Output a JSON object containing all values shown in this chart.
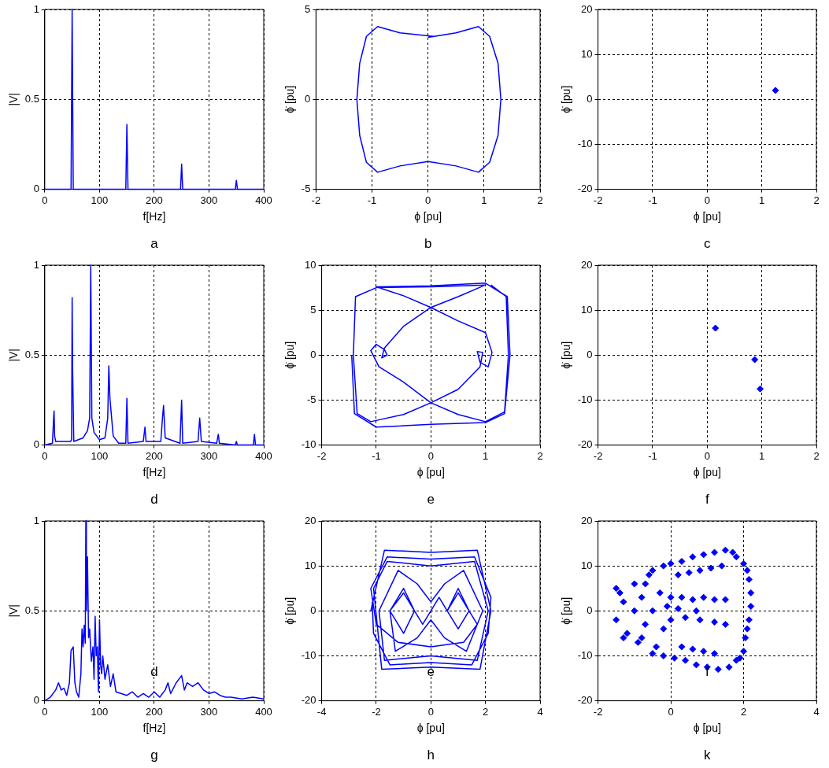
{
  "chart_data": [
    {
      "type": "line",
      "xlabel": "f[Hz]",
      "ylabel": "|V|",
      "color": "#0000ff",
      "grid": true,
      "xlim": [
        0,
        400
      ],
      "ylim": [
        0,
        1
      ],
      "xticks": [
        0,
        100,
        200,
        300,
        400
      ],
      "yticks": [
        0,
        0.5,
        1
      ],
      "annotations": [
        "a"
      ],
      "x": [
        0,
        48,
        50,
        52,
        148,
        150,
        152,
        248,
        250,
        252,
        348,
        350,
        352,
        400
      ],
      "values": [
        0,
        0,
        1,
        0,
        0,
        0.36,
        0,
        0,
        0.14,
        0,
        0,
        0.05,
        0,
        0
      ]
    },
    {
      "type": "line",
      "xlabel": "ϕ [pu]",
      "ylabel": "ϕ̇ [pu]",
      "color": "#0000ff",
      "grid": true,
      "xlim": [
        -2,
        2
      ],
      "ylim": [
        -5,
        5
      ],
      "xticks": [
        -2,
        -1,
        0,
        1,
        2
      ],
      "yticks": [
        -5,
        0,
        5
      ],
      "annotations": [
        "b"
      ],
      "x": [
        0,
        0.5,
        0.9,
        1.1,
        1.25,
        1.3,
        1.25,
        1.1,
        0.9,
        0.5,
        0,
        -0.5,
        -0.9,
        -1.1,
        -1.22,
        -1.27,
        -1.22,
        -1.1,
        -0.9,
        -0.5,
        0.1
      ],
      "values": [
        3.45,
        3.7,
        4.05,
        3.5,
        2,
        0,
        -2,
        -3.5,
        -4.05,
        -3.7,
        -3.45,
        -3.7,
        -4.05,
        -3.5,
        -2,
        0,
        2,
        3.5,
        4.05,
        3.7,
        3.5
      ]
    },
    {
      "type": "scatter",
      "marker": "diamond",
      "xlabel": "ϕ [pu]",
      "ylabel": "ϕ̇ [pu]",
      "color": "#0000ff",
      "grid": true,
      "xlim": [
        -2,
        2
      ],
      "ylim": [
        -20,
        20
      ],
      "xticks": [
        -2,
        -1,
        0,
        1,
        2
      ],
      "yticks": [
        -20,
        -10,
        0,
        10,
        20
      ],
      "annotations": [
        "c"
      ],
      "x": [
        1.25
      ],
      "values": [
        2
      ]
    },
    {
      "type": "line",
      "xlabel": "f[Hz]",
      "ylabel": "|V|",
      "color": "#0000ff",
      "grid": true,
      "xlim": [
        0,
        400
      ],
      "ylim": [
        0,
        1
      ],
      "xticks": [
        0,
        100,
        200,
        300,
        400
      ],
      "yticks": [
        0,
        0.5,
        1
      ],
      "annotations": [
        "d"
      ],
      "x": [
        0,
        14,
        16,
        17,
        18,
        20,
        47,
        49,
        50,
        51,
        53,
        70,
        78,
        82,
        84,
        86,
        90,
        100,
        110,
        115,
        117,
        119,
        125,
        135,
        148,
        150,
        152,
        180,
        183,
        185,
        212,
        215,
        217,
        220,
        247,
        250,
        252,
        280,
        283,
        286,
        314,
        317,
        319,
        348,
        350,
        352,
        381,
        383,
        385,
        400
      ],
      "values": [
        0,
        0.01,
        0.14,
        0.19,
        0.05,
        0.02,
        0.02,
        0.03,
        0.82,
        0.4,
        0.02,
        0.04,
        0.08,
        0.15,
        1.0,
        0.15,
        0.07,
        0.03,
        0.04,
        0.15,
        0.44,
        0.26,
        0.05,
        0.01,
        0.01,
        0.26,
        0.01,
        0.02,
        0.1,
        0.02,
        0.02,
        0.15,
        0.22,
        0.04,
        0.01,
        0.25,
        0.01,
        0.02,
        0.15,
        0.02,
        0.01,
        0.06,
        0.01,
        0,
        0.02,
        0,
        0,
        0.06,
        0,
        0
      ]
    },
    {
      "type": "line",
      "xlabel": "ϕ [pu]",
      "ylabel": "ϕ̇ [pu]",
      "color": "#0000ff",
      "grid": true,
      "xlim": [
        -2,
        2
      ],
      "ylim": [
        -10,
        10
      ],
      "xticks": [
        -2,
        -1,
        0,
        1,
        2
      ],
      "yticks": [
        -10,
        -5,
        0,
        5,
        10
      ],
      "annotations": [
        "e"
      ],
      "x": [
        -1.45,
        -1.4,
        -1.0,
        0,
        1.0,
        1.35,
        1.45,
        1.4,
        1.0,
        0,
        -1.0,
        -0.5,
        0,
        0.5,
        1.0,
        1.12,
        1.05,
        0.9,
        0.85,
        0.95,
        0.9,
        0.5,
        0,
        -0.5,
        -1.1,
        -1.35,
        -1.42,
        -1.38,
        -1.0,
        0,
        1.0,
        0.5,
        0,
        -0.5,
        -0.85,
        -0.9,
        -0.8,
        -0.85,
        -1.0,
        -1.1,
        -0.95,
        -0.5,
        0,
        0.5,
        1.0,
        1.35,
        1.42,
        1.38,
        1.1
      ],
      "values": [
        0,
        -6.5,
        -8.0,
        -7.7,
        -7.5,
        -6.5,
        0,
        6.5,
        8.0,
        7.7,
        7.6,
        6.6,
        5.3,
        3.8,
        2.5,
        0.3,
        -1.3,
        -0.8,
        0.4,
        0.3,
        -1.3,
        -3.8,
        -5.3,
        -6.6,
        -7.4,
        -6.5,
        0,
        6.5,
        7.5,
        7.6,
        7.8,
        6.5,
        5.3,
        3.2,
        0.8,
        -0.3,
        0,
        0.6,
        1.2,
        0.5,
        -1.3,
        -3.0,
        -5.3,
        -6.6,
        -7.4,
        -6.3,
        0,
        6.5,
        7.8
      ]
    },
    {
      "type": "scatter",
      "marker": "diamond",
      "xlabel": "ϕ [pu]",
      "ylabel": "ϕ̇ [pu]",
      "color": "#0000ff",
      "grid": true,
      "xlim": [
        -2,
        2
      ],
      "ylim": [
        -20,
        20
      ],
      "xticks": [
        -2,
        -1,
        0,
        1,
        2
      ],
      "yticks": [
        -20,
        -10,
        0,
        10,
        20
      ],
      "annotations": [
        "f"
      ],
      "x": [
        0.15,
        0.87,
        0.97
      ],
      "values": [
        6,
        -1,
        -7.5
      ]
    },
    {
      "type": "line",
      "xlabel": "f[Hz]",
      "ylabel": "|V|",
      "color": "#0000ff",
      "grid": true,
      "xlim": [
        0,
        400
      ],
      "ylim": [
        0,
        1
      ],
      "xticks": [
        0,
        100,
        200,
        300,
        400
      ],
      "yticks": [
        0,
        0.5,
        1
      ],
      "annotations": [
        "g",
        "d"
      ],
      "x": [
        0,
        10,
        20,
        25,
        30,
        35,
        40,
        45,
        48,
        52,
        55,
        58,
        62,
        66,
        68,
        70,
        72,
        74,
        75,
        76,
        78,
        80,
        82,
        85,
        88,
        90,
        92,
        94,
        96,
        98,
        100,
        102,
        104,
        106,
        110,
        115,
        120,
        125,
        130,
        140,
        150,
        160,
        170,
        180,
        190,
        200,
        210,
        220,
        225,
        230,
        240,
        250,
        255,
        260,
        270,
        280,
        290,
        300,
        310,
        320,
        330,
        340,
        360,
        380,
        400
      ],
      "values": [
        0,
        0.02,
        0.06,
        0.1,
        0.06,
        0.07,
        0.03,
        0.1,
        0.28,
        0.3,
        0.1,
        0.05,
        0.02,
        0.15,
        0.4,
        0.3,
        0.42,
        0.32,
        1.0,
        0.5,
        0.8,
        0.35,
        0.4,
        0.22,
        0.3,
        0.12,
        0.47,
        0.25,
        0.3,
        0.05,
        0.45,
        0.2,
        0.15,
        0.25,
        0.12,
        0.2,
        0.08,
        0.15,
        0.05,
        0.04,
        0.03,
        0.05,
        0.02,
        0.04,
        0.02,
        0.05,
        0.02,
        0.06,
        0.1,
        0.04,
        0.1,
        0.14,
        0.06,
        0.1,
        0.08,
        0.1,
        0.06,
        0.04,
        0.05,
        0.03,
        0.02,
        0.02,
        0.01,
        0.02,
        0.01
      ]
    },
    {
      "type": "line",
      "xlabel": "ϕ [pu]",
      "ylabel": "ϕ̇ [pu]",
      "color": "#0000ff",
      "grid": true,
      "xlim": [
        -4,
        4
      ],
      "ylim": [
        -20,
        20
      ],
      "xticks": [
        -4,
        -2,
        0,
        2,
        4
      ],
      "yticks": [
        -20,
        -10,
        0,
        10,
        20
      ],
      "annotations": [
        "h",
        "e"
      ],
      "x": [
        -2.2,
        -1.7,
        0,
        1.7,
        2.2,
        1.8,
        0,
        -1.8,
        -2.1,
        -1.6,
        0,
        1.6,
        2.1,
        1.7,
        0,
        -1.7,
        -1.9,
        -1.2,
        -0.5,
        0,
        0.5,
        1.2,
        1.9,
        1.3,
        0.5,
        0,
        -0.5,
        -1.3,
        -1.5,
        -1,
        -0.6,
        -1,
        -1.5,
        -1,
        -0.6,
        -0.3,
        0.3,
        0.6,
        1,
        1.4,
        1,
        0.6,
        1,
        1.4,
        1.7,
        1.2,
        0,
        -1.2,
        -2.0,
        -2.2,
        -1.6,
        0,
        1.6,
        2.2,
        2.1,
        1.5,
        0,
        -1.5,
        -2.1,
        -2.15
      ],
      "values": [
        0,
        13.5,
        13,
        13.5,
        0,
        -13,
        -12.5,
        -13,
        5,
        11,
        10,
        11,
        0,
        -11,
        -10,
        -11,
        0,
        9,
        6,
        2,
        6,
        9,
        0,
        -9,
        -6,
        -2,
        -6,
        -9,
        0,
        5,
        0,
        -5,
        0,
        4,
        0,
        -3,
        3,
        0,
        4,
        0,
        -4,
        0,
        5,
        0,
        -3,
        -7,
        -8,
        -7,
        -3,
        5,
        12,
        11.5,
        12,
        3,
        -5,
        -12,
        -11.5,
        -12,
        -5,
        2
      ]
    },
    {
      "type": "scatter",
      "marker": "diamond",
      "xlabel": "ϕ [pu]",
      "ylabel": "ϕ̇ [pu]",
      "color": "#0000ff",
      "grid": true,
      "xlim": [
        -2,
        4
      ],
      "ylim": [
        -20,
        20
      ],
      "xticks": [
        -2,
        0,
        2,
        4
      ],
      "yticks": [
        -20,
        -10,
        0,
        10,
        20
      ],
      "annotations": [
        "k",
        "f"
      ],
      "x": [
        -0.5,
        -0.2,
        0,
        0.3,
        0.6,
        0.9,
        1.2,
        1.5,
        1.7,
        1.8,
        0.2,
        0.5,
        0.8,
        1.1,
        1.4,
        2.0,
        2.1,
        2.15,
        2.2,
        2.2,
        2.15,
        2.1,
        2.05,
        2.0,
        1.9,
        -0.5,
        -0.2,
        0.1,
        0.4,
        0.7,
        1.0,
        1.3,
        1.6,
        1.8,
        0.3,
        0.6,
        0.9,
        1.2,
        0,
        0.3,
        0.6,
        0.9,
        1.2,
        1.5,
        0,
        0.4,
        0.8,
        1.2,
        1.5,
        0.2,
        0.7,
        -1.5,
        -1.5,
        -1.3,
        -1.2,
        -1.0,
        -1.0,
        -0.9,
        -0.8,
        -0.7,
        -0.6,
        -0.5,
        -0.4,
        -0.3,
        -0.2,
        -0.1,
        -1.3,
        -1.4,
        -0.7,
        -0.8
      ],
      "values": [
        9,
        10,
        10.5,
        11,
        12,
        12.5,
        13,
        13.5,
        13,
        12,
        8,
        8.5,
        9,
        9.5,
        10,
        10.5,
        9,
        7,
        4,
        1,
        -2,
        -4,
        -6,
        -9,
        -10.5,
        -9.5,
        -10,
        -10.5,
        -11,
        -12,
        -12.5,
        -13,
        -12.5,
        -11,
        -8,
        -8.5,
        -9,
        -9.5,
        3,
        3,
        2.5,
        3,
        2.5,
        2.5,
        -2,
        -1.5,
        -2,
        -2.5,
        -3,
        0.5,
        0,
        5,
        -2,
        2,
        -5,
        6,
        0,
        -7,
        3,
        -3,
        8,
        0,
        -8,
        4,
        -4,
        1,
        -6,
        4,
        6,
        -6
      ]
    }
  ]
}
